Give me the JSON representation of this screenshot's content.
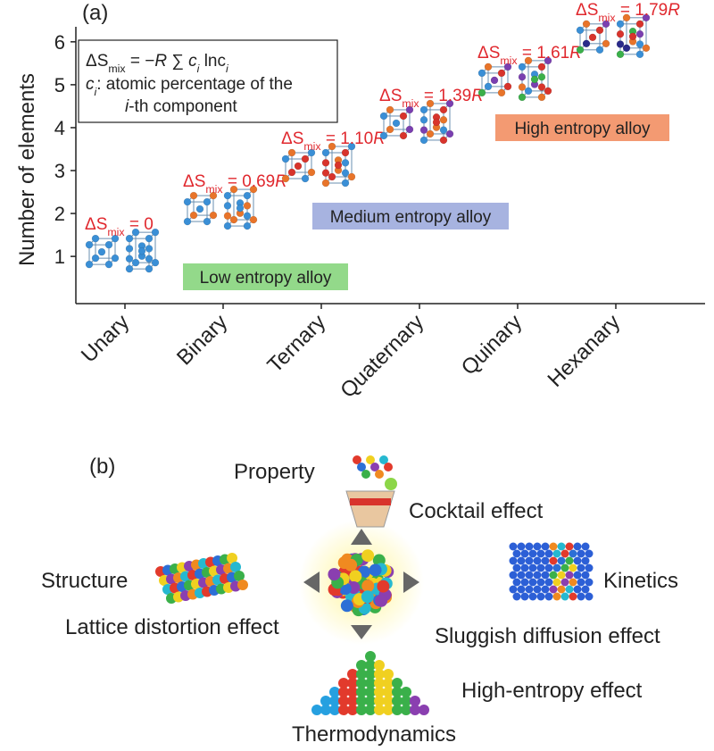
{
  "chart_data": {
    "type": "lattice",
    "panel_label": "(a)",
    "ylabel": "Number of elements",
    "categories": [
      "Unary",
      "Binary",
      "Ternary",
      "Quaternary",
      "Quinary",
      "Hexanary"
    ],
    "values": [
      1,
      2,
      3,
      4,
      5,
      6
    ],
    "ylim": [
      -0.1,
      6.35
    ],
    "yticks": [
      1,
      2,
      3,
      4,
      5,
      6
    ],
    "colors": [
      "#3a8fd6",
      "#e8742a",
      "#d8342c",
      "#7a3fb0",
      "#3ab04a",
      "#2a2a8a"
    ],
    "annotation_color": "#e0282e",
    "annotations": [
      [
        {
          "text": "ΔS",
          "style": "normal"
        },
        {
          "text": "mix",
          "style": "sub"
        },
        {
          "text": " = 0",
          "style": "normal"
        }
      ],
      [
        {
          "text": "ΔS",
          "style": "normal"
        },
        {
          "text": "mix",
          "style": "sub"
        },
        {
          "text": " = 0.69",
          "style": "normal"
        },
        {
          "text": "R",
          "style": "italic"
        }
      ],
      [
        {
          "text": "ΔS",
          "style": "normal"
        },
        {
          "text": "mix",
          "style": "sub"
        },
        {
          "text": " = 1.10",
          "style": "normal"
        },
        {
          "text": "R",
          "style": "italic"
        }
      ],
      [
        {
          "text": "ΔS",
          "style": "normal"
        },
        {
          "text": "mix",
          "style": "sub"
        },
        {
          "text": " = 1.39",
          "style": "normal"
        },
        {
          "text": "R",
          "style": "italic"
        }
      ],
      [
        {
          "text": "ΔS",
          "style": "normal"
        },
        {
          "text": "mix",
          "style": "sub"
        },
        {
          "text": " = 1.61",
          "style": "normal"
        },
        {
          "text": "R",
          "style": "italic"
        }
      ],
      [
        {
          "text": "ΔS",
          "style": "normal"
        },
        {
          "text": "mix",
          "style": "sub"
        },
        {
          "text": " = 1.79",
          "style": "normal"
        },
        {
          "text": "R",
          "style": "italic"
        }
      ]
    ],
    "formula": [
      [
        {
          "text": "ΔS",
          "style": "normal"
        },
        {
          "text": "mix",
          "style": "sub"
        },
        {
          "text": " = −",
          "style": "normal"
        },
        {
          "text": "R",
          "style": "italic"
        },
        {
          "text": " ∑ ",
          "style": "normal"
        },
        {
          "text": "c",
          "style": "italic"
        },
        {
          "text": "i",
          "style": "italic-sub"
        },
        {
          "text": " lnc",
          "style": "normal"
        },
        {
          "text": "i",
          "style": "italic-sub"
        }
      ],
      [
        {
          "text": "c",
          "style": "italic"
        },
        {
          "text": "i",
          "style": "italic-sub"
        },
        {
          "text": ": atomic percentage of the",
          "style": "normal"
        }
      ],
      [
        {
          "text": "i",
          "style": "italic"
        },
        {
          "text": "-th component",
          "style": "normal"
        }
      ]
    ],
    "regions": [
      {
        "label": "Low entropy alloy",
        "color": "#93d98a"
      },
      {
        "label": "Medium entropy alloy",
        "color": "#a7b3e0"
      },
      {
        "label": "High entropy alloy",
        "color": "#f39a72"
      }
    ]
  },
  "diagram": {
    "panel_label": "(b)",
    "property": "Property",
    "cocktail_effect": "Cocktail effect",
    "structure": "Structure",
    "lattice_distortion_effect": "Lattice distortion effect",
    "kinetics": "Kinetics",
    "sluggish_diffusion_effect": "Sluggish diffusion effect",
    "high_entropy_effect": "High-entropy effect",
    "thermodynamics": "Thermodynamics"
  }
}
